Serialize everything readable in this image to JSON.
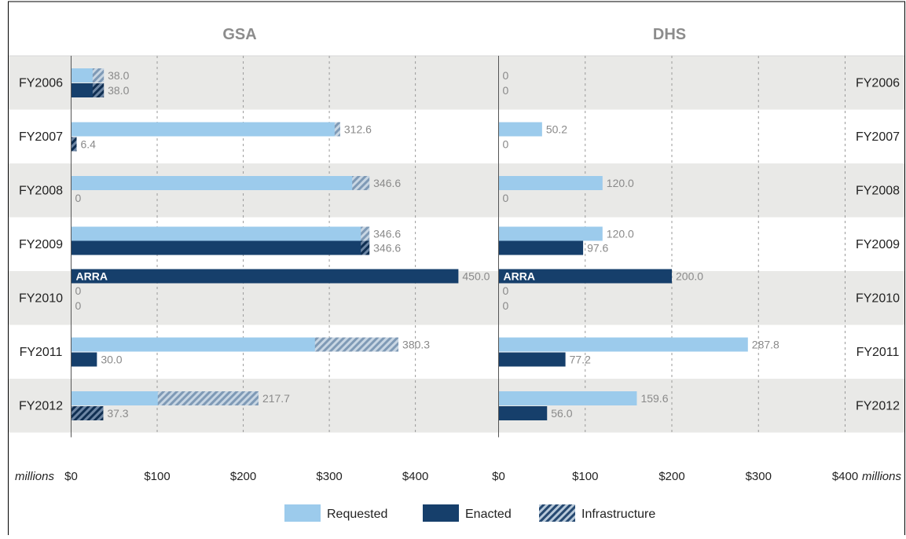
{
  "chart_data": {
    "type": "bar",
    "orientation": "horizontal",
    "unit_label": "millions",
    "xlim": [
      0,
      400
    ],
    "x_ticks": [
      {
        "value": 0,
        "label": "$0"
      },
      {
        "value": 100,
        "label": "$100"
      },
      {
        "value": 200,
        "label": "$200"
      },
      {
        "value": 300,
        "label": "$300"
      },
      {
        "value": 400,
        "label": "$400"
      }
    ],
    "categories": [
      "FY2006",
      "FY2007",
      "FY2008",
      "FY2009",
      "FY2010",
      "FY2011",
      "FY2012"
    ],
    "legend": {
      "placement": "bottom",
      "items": [
        {
          "key": "requested",
          "label": "Requested"
        },
        {
          "key": "enacted",
          "label": "Enacted"
        },
        {
          "key": "infrastructure",
          "label": "Infrastructure"
        }
      ]
    },
    "colors": {
      "requested": "#9ccbec",
      "enacted": "#163f6b",
      "infrastructure_light": "#8fa9c3",
      "infrastructure_dark": "#2b4b73",
      "band": "#e9e9e7",
      "value_text": "#8a8a8a",
      "axis_text": "#222222",
      "title_text": "#8c8c8c"
    },
    "panels": [
      {
        "title": "GSA",
        "rows": [
          {
            "category": "FY2006",
            "bars": [
              {
                "series": "requested",
                "value": 38.0,
                "label": "38.0",
                "infrastructure": 13.0
              },
              {
                "series": "enacted",
                "value": 38.0,
                "label": "38.0",
                "infrastructure": 13.0
              }
            ]
          },
          {
            "category": "FY2007",
            "bars": [
              {
                "series": "requested",
                "value": 312.6,
                "label": "312.6",
                "infrastructure": 6.4
              },
              {
                "series": "enacted",
                "value": 6.4,
                "label": "6.4",
                "infrastructure": 6.4
              }
            ]
          },
          {
            "category": "FY2008",
            "bars": [
              {
                "series": "requested",
                "value": 346.6,
                "label": "346.6",
                "infrastructure": 20.0
              },
              {
                "series": "enacted",
                "value": 0,
                "label": "0",
                "infrastructure": 0
              }
            ]
          },
          {
            "category": "FY2009",
            "bars": [
              {
                "series": "requested",
                "value": 346.6,
                "label": "346.6",
                "infrastructure": 10.0
              },
              {
                "series": "enacted",
                "value": 346.6,
                "label": "346.6",
                "infrastructure": 10.0
              },
              {
                "series": "enacted",
                "value": 450.0,
                "label": "450.0",
                "infrastructure": 0,
                "inner_label": "ARRA"
              }
            ]
          },
          {
            "category": "FY2010",
            "bars": [
              {
                "series": "requested",
                "value": 0,
                "label": "0",
                "infrastructure": 0
              },
              {
                "series": "enacted",
                "value": 0,
                "label": "0",
                "infrastructure": 0
              }
            ]
          },
          {
            "category": "FY2011",
            "bars": [
              {
                "series": "requested",
                "value": 380.3,
                "label": "380.3",
                "infrastructure": 97.0
              },
              {
                "series": "enacted",
                "value": 30.0,
                "label": "30.0",
                "infrastructure": 0
              }
            ]
          },
          {
            "category": "FY2012",
            "bars": [
              {
                "series": "requested",
                "value": 217.7,
                "label": "217.7",
                "infrastructure": 117.0
              },
              {
                "series": "enacted",
                "value": 37.3,
                "label": "37.3",
                "infrastructure": 37.3
              }
            ]
          }
        ]
      },
      {
        "title": "DHS",
        "rows": [
          {
            "category": "FY2006",
            "bars": [
              {
                "series": "requested",
                "value": 0,
                "label": "0",
                "infrastructure": 0
              },
              {
                "series": "enacted",
                "value": 0,
                "label": "0",
                "infrastructure": 0
              }
            ]
          },
          {
            "category": "FY2007",
            "bars": [
              {
                "series": "requested",
                "value": 50.2,
                "label": "50.2",
                "infrastructure": 0
              },
              {
                "series": "enacted",
                "value": 0,
                "label": "0",
                "infrastructure": 0
              }
            ]
          },
          {
            "category": "FY2008",
            "bars": [
              {
                "series": "requested",
                "value": 120.0,
                "label": "120.0",
                "infrastructure": 0
              },
              {
                "series": "enacted",
                "value": 0,
                "label": "0",
                "infrastructure": 0
              }
            ]
          },
          {
            "category": "FY2009",
            "bars": [
              {
                "series": "requested",
                "value": 120.0,
                "label": "120.0",
                "infrastructure": 0
              },
              {
                "series": "enacted",
                "value": 97.6,
                "label": "97.6",
                "infrastructure": 0
              },
              {
                "series": "enacted",
                "value": 200.0,
                "label": "200.0",
                "infrastructure": 0,
                "inner_label": "ARRA"
              }
            ]
          },
          {
            "category": "FY2010",
            "bars": [
              {
                "series": "requested",
                "value": 0,
                "label": "0",
                "infrastructure": 0
              },
              {
                "series": "enacted",
                "value": 0,
                "label": "0",
                "infrastructure": 0
              }
            ]
          },
          {
            "category": "FY2011",
            "bars": [
              {
                "series": "requested",
                "value": 287.8,
                "label": "287.8",
                "infrastructure": 0
              },
              {
                "series": "enacted",
                "value": 77.2,
                "label": "77.2",
                "infrastructure": 0
              }
            ]
          },
          {
            "category": "FY2012",
            "bars": [
              {
                "series": "requested",
                "value": 159.6,
                "label": "159.6",
                "infrastructure": 0
              },
              {
                "series": "enacted",
                "value": 56.0,
                "label": "56.0",
                "infrastructure": 0
              }
            ]
          }
        ]
      }
    ]
  }
}
